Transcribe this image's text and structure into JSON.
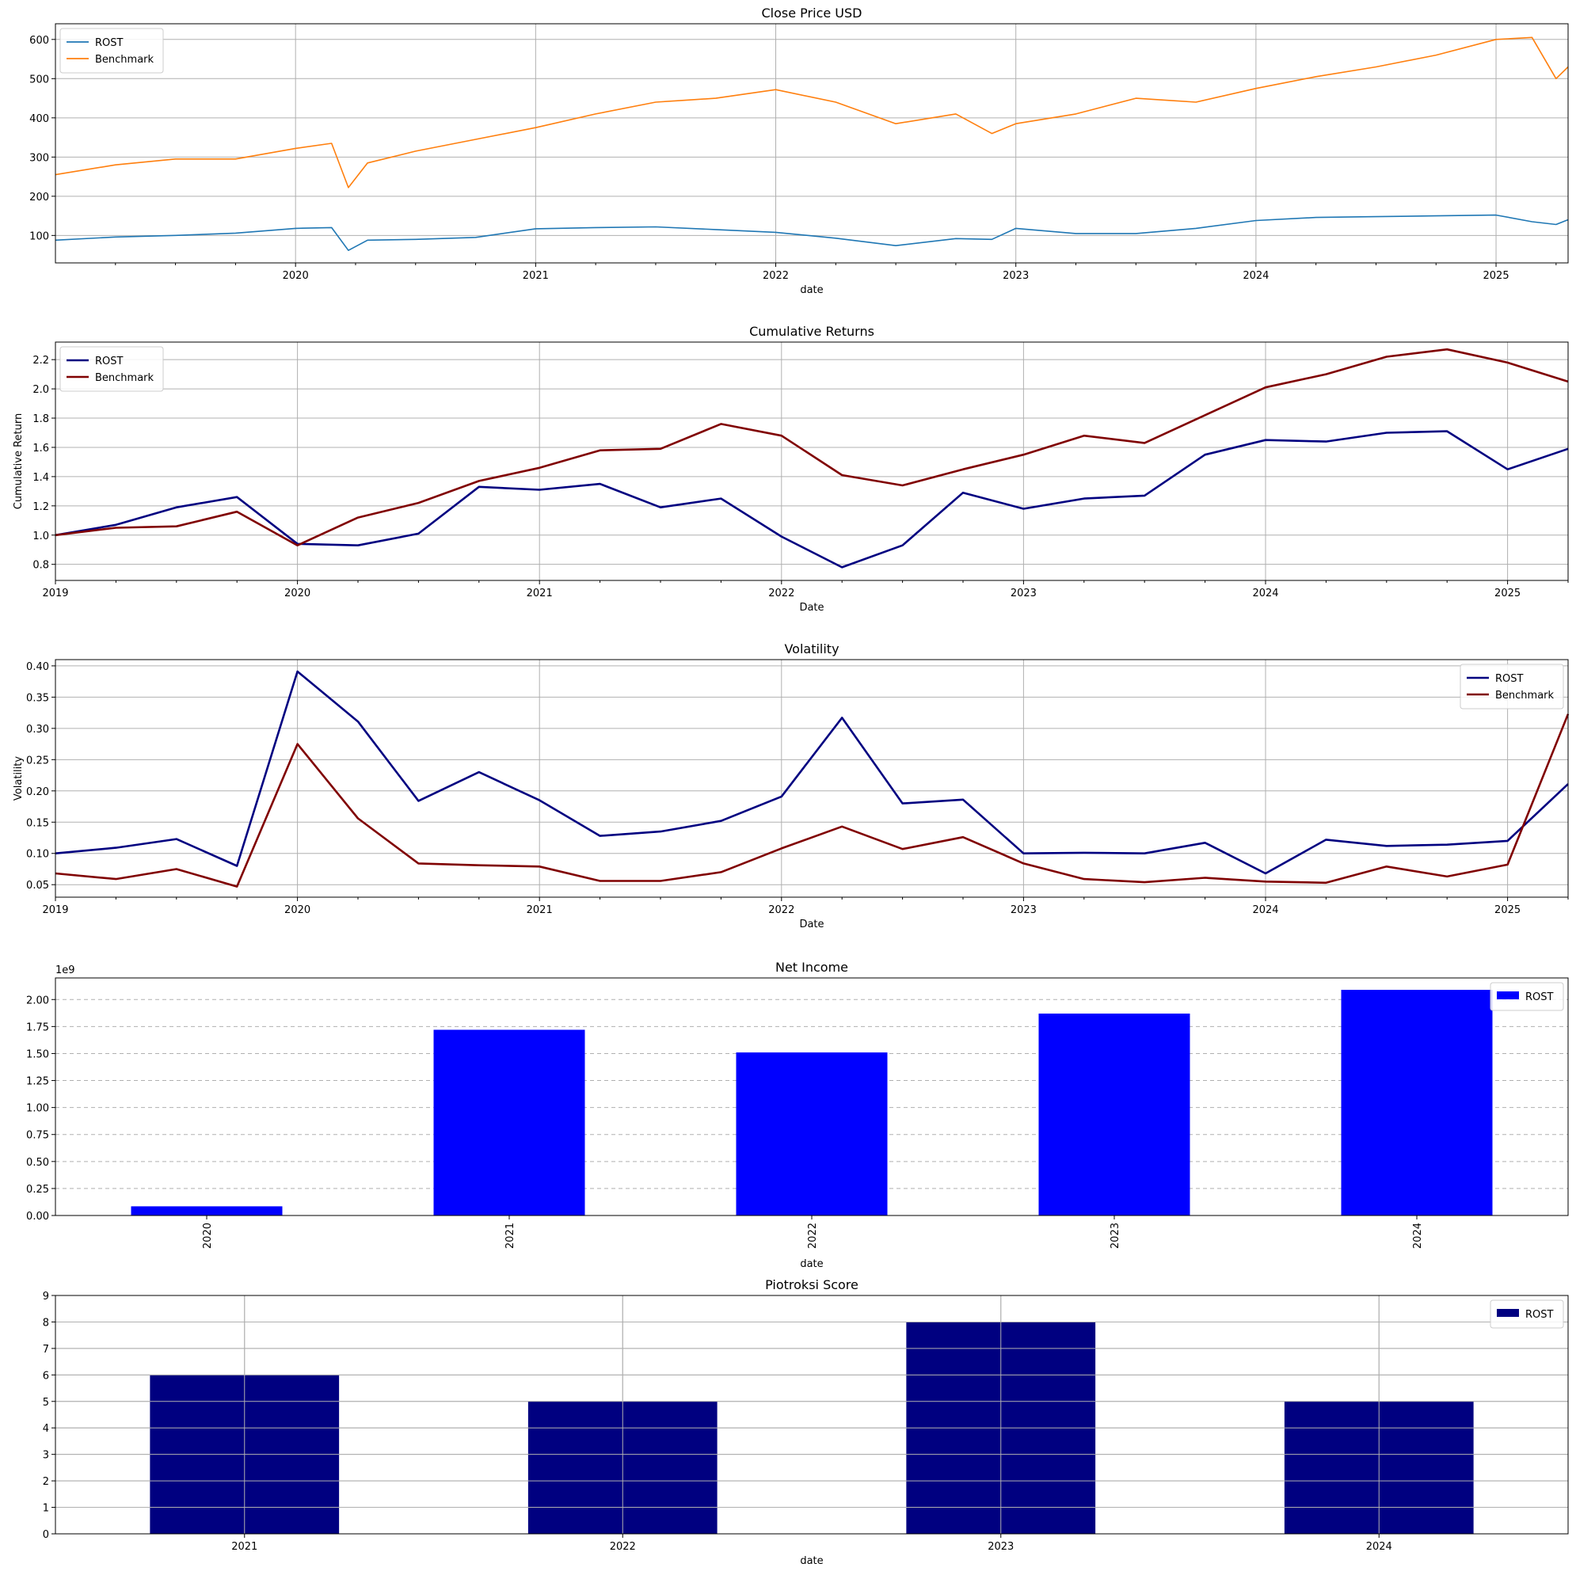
{
  "chart_data": [
    {
      "type": "line",
      "title": "Close Price USD",
      "xlabel": "date",
      "ylabel": "",
      "xlim": [
        2019.0,
        2025.3
      ],
      "ylim": [
        30,
        640
      ],
      "xticks": [
        2020,
        2021,
        2022,
        2023,
        2024,
        2025
      ],
      "xtick_labels": [
        "2020",
        "2021",
        "2022",
        "2023",
        "2024",
        "2025"
      ],
      "yticks": [
        100,
        200,
        300,
        400,
        500,
        600
      ],
      "ytick_labels": [
        "100",
        "200",
        "300",
        "400",
        "500",
        "600"
      ],
      "grid": "both",
      "legend": "top-left",
      "series": [
        {
          "name": "ROST",
          "color": "#1f77b4",
          "x": [
            2019.0,
            2019.25,
            2019.5,
            2019.75,
            2020.0,
            2020.15,
            2020.22,
            2020.3,
            2020.5,
            2020.75,
            2021.0,
            2021.25,
            2021.5,
            2021.75,
            2022.0,
            2022.25,
            2022.5,
            2022.75,
            2022.9,
            2023.0,
            2023.25,
            2023.5,
            2023.75,
            2024.0,
            2024.25,
            2024.5,
            2024.75,
            2025.0,
            2025.15,
            2025.25,
            2025.3
          ],
          "values": [
            88,
            96,
            100,
            106,
            118,
            120,
            62,
            88,
            90,
            95,
            117,
            120,
            122,
            115,
            108,
            93,
            74,
            92,
            90,
            118,
            105,
            105,
            118,
            138,
            146,
            148,
            150,
            152,
            135,
            128,
            140
          ]
        },
        {
          "name": "Benchmark",
          "color": "#ff7f0e",
          "x": [
            2019.0,
            2019.25,
            2019.5,
            2019.75,
            2020.0,
            2020.15,
            2020.22,
            2020.3,
            2020.5,
            2020.75,
            2021.0,
            2021.25,
            2021.5,
            2021.75,
            2022.0,
            2022.25,
            2022.5,
            2022.75,
            2022.9,
            2023.0,
            2023.25,
            2023.5,
            2023.75,
            2024.0,
            2024.25,
            2024.5,
            2024.75,
            2025.0,
            2025.15,
            2025.25,
            2025.3
          ],
          "values": [
            255,
            280,
            295,
            295,
            322,
            335,
            222,
            285,
            315,
            345,
            375,
            410,
            440,
            450,
            472,
            440,
            385,
            410,
            360,
            385,
            410,
            450,
            440,
            475,
            505,
            530,
            560,
            600,
            605,
            500,
            530
          ]
        }
      ]
    },
    {
      "type": "line",
      "title": "Cumulative Returns",
      "xlabel": "Date",
      "ylabel": "Cumulative Return",
      "xlim": [
        2019.0,
        2025.25
      ],
      "ylim": [
        0.69,
        2.32
      ],
      "xticks": [
        2019,
        2020,
        2021,
        2022,
        2023,
        2024,
        2025
      ],
      "xtick_labels": [
        "2019",
        "2020",
        "2021",
        "2022",
        "2023",
        "2024",
        "2025"
      ],
      "yticks": [
        0.8,
        1.0,
        1.2,
        1.4,
        1.6,
        1.8,
        2.0,
        2.2
      ],
      "ytick_labels": [
        "0.8",
        "1.0",
        "1.2",
        "1.4",
        "1.6",
        "1.8",
        "2.0",
        "2.2"
      ],
      "grid": "both",
      "legend": "top-left",
      "x": [
        2019.0,
        2019.25,
        2019.5,
        2019.75,
        2020.0,
        2020.25,
        2020.5,
        2020.75,
        2021.0,
        2021.25,
        2021.5,
        2021.75,
        2022.0,
        2022.25,
        2022.5,
        2022.75,
        2023.0,
        2023.25,
        2023.5,
        2023.75,
        2024.0,
        2024.25,
        2024.5,
        2024.75,
        2025.0,
        2025.25
      ],
      "series": [
        {
          "name": "ROST",
          "color": "#000080",
          "values": [
            1.0,
            1.07,
            1.19,
            1.26,
            0.94,
            0.93,
            1.01,
            1.33,
            1.31,
            1.35,
            1.19,
            1.25,
            0.99,
            0.78,
            0.93,
            1.29,
            1.18,
            1.25,
            1.27,
            1.55,
            1.65,
            1.64,
            1.7,
            1.71,
            1.45,
            1.59
          ]
        },
        {
          "name": "Benchmark",
          "color": "#800000",
          "values": [
            1.0,
            1.05,
            1.06,
            1.16,
            0.93,
            1.12,
            1.22,
            1.37,
            1.46,
            1.58,
            1.59,
            1.76,
            1.68,
            1.41,
            1.34,
            1.45,
            1.55,
            1.68,
            1.63,
            1.82,
            2.01,
            2.1,
            2.22,
            2.27,
            2.18,
            2.05
          ]
        }
      ]
    },
    {
      "type": "line",
      "title": "Volatility",
      "xlabel": "Date",
      "ylabel": "Volatility",
      "xlim": [
        2019.0,
        2025.25
      ],
      "ylim": [
        0.03,
        0.41
      ],
      "xticks": [
        2019,
        2020,
        2021,
        2022,
        2023,
        2024,
        2025
      ],
      "xtick_labels": [
        "2019",
        "2020",
        "2021",
        "2022",
        "2023",
        "2024",
        "2025"
      ],
      "yticks": [
        0.05,
        0.1,
        0.15,
        0.2,
        0.25,
        0.3,
        0.35,
        0.4
      ],
      "ytick_labels": [
        "0.05",
        "0.10",
        "0.15",
        "0.20",
        "0.25",
        "0.30",
        "0.35",
        "0.40"
      ],
      "grid": "both",
      "legend": "top-right",
      "x": [
        2019.0,
        2019.25,
        2019.5,
        2019.75,
        2020.0,
        2020.25,
        2020.5,
        2020.75,
        2021.0,
        2021.25,
        2021.5,
        2021.75,
        2022.0,
        2022.25,
        2022.5,
        2022.75,
        2023.0,
        2023.25,
        2023.5,
        2023.75,
        2024.0,
        2024.25,
        2024.5,
        2024.75,
        2025.0,
        2025.25
      ],
      "series": [
        {
          "name": "ROST",
          "color": "#000080",
          "values": [
            0.1,
            0.109,
            0.123,
            0.08,
            0.391,
            0.311,
            0.184,
            0.23,
            0.185,
            0.128,
            0.135,
            0.152,
            0.191,
            0.317,
            0.18,
            0.186,
            0.1,
            0.101,
            0.1,
            0.117,
            0.068,
            0.122,
            0.112,
            0.114,
            0.12,
            0.211
          ]
        },
        {
          "name": "Benchmark",
          "color": "#800000",
          "values": [
            0.068,
            0.059,
            0.075,
            0.047,
            0.275,
            0.156,
            0.084,
            0.081,
            0.079,
            0.056,
            0.056,
            0.07,
            0.108,
            0.143,
            0.107,
            0.126,
            0.084,
            0.059,
            0.054,
            0.061,
            0.055,
            0.053,
            0.079,
            0.063,
            0.082,
            0.323
          ]
        }
      ]
    },
    {
      "type": "bar",
      "title": "Net Income",
      "xlabel": "date",
      "ylabel": "",
      "offset_label": "1e9",
      "categories": [
        "2020",
        "2021",
        "2022",
        "2023",
        "2024"
      ],
      "ylim": [
        0,
        2.2
      ],
      "yticks": [
        0.0,
        0.25,
        0.5,
        0.75,
        1.0,
        1.25,
        1.5,
        1.75,
        2.0
      ],
      "ytick_labels": [
        "0.00",
        "0.25",
        "0.50",
        "0.75",
        "1.00",
        "1.25",
        "1.50",
        "1.75",
        "2.00"
      ],
      "grid": "y-dashed",
      "legend": "top-right",
      "xtick_rotation": "vertical",
      "series": [
        {
          "name": "ROST",
          "color": "#0000ff",
          "values": [
            0.085,
            1.72,
            1.51,
            1.87,
            2.09
          ]
        }
      ]
    },
    {
      "type": "bar",
      "title": "Piotroksi Score",
      "xlabel": "date",
      "ylabel": "",
      "categories": [
        "2021",
        "2022",
        "2023",
        "2024"
      ],
      "ylim": [
        0,
        9
      ],
      "yticks": [
        0,
        1,
        2,
        3,
        4,
        5,
        6,
        7,
        8,
        9
      ],
      "ytick_labels": [
        "0",
        "1",
        "2",
        "3",
        "4",
        "5",
        "6",
        "7",
        "8",
        "9"
      ],
      "grid": "both",
      "legend": "top-right",
      "xtick_rotation": "horizontal",
      "series": [
        {
          "name": "ROST",
          "color": "#000080",
          "values": [
            6,
            5,
            8,
            5
          ]
        }
      ]
    }
  ]
}
